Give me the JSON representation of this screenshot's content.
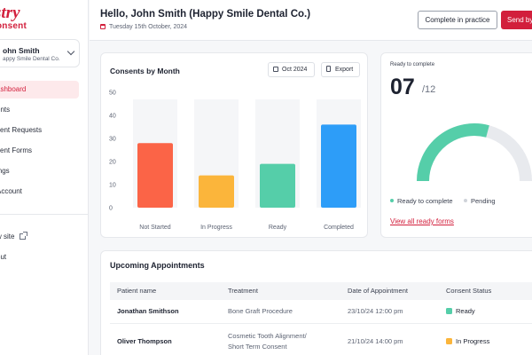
{
  "sidebar": {
    "logo_top": "stry",
    "logo_bottom": "onsent",
    "user_name": "ohn Smith",
    "user_org": "appy Smile Dental Co.",
    "items": [
      {
        "label": "ashboard",
        "active": true
      },
      {
        "label": "ents"
      },
      {
        "label": "sent Requests"
      },
      {
        "label": "sent Forms"
      },
      {
        "label": "ings"
      },
      {
        "label": "Account"
      }
    ],
    "bottom_items": [
      {
        "label": "w site"
      },
      {
        "label": "out"
      }
    ]
  },
  "header": {
    "greeting": "Hello, John Smith (Happy Smile Dental Co.)",
    "date": "Tuesday 15th October, 2024",
    "btn_complete": "Complete in practice",
    "btn_send": "Send by"
  },
  "chart_card": {
    "title": "Consents by Month",
    "month_chip": "Oct 2024",
    "export_chip": "Export"
  },
  "chart_data": {
    "type": "bar",
    "categories": [
      "Not Started",
      "In Progress",
      "Ready",
      "Completed"
    ],
    "values": [
      28,
      14,
      19,
      36
    ],
    "colors": [
      "#fb6447",
      "#fbb53b",
      "#55cea9",
      "#2d9df8"
    ],
    "yticks": [
      0,
      10,
      20,
      30,
      40,
      50
    ],
    "ylim": [
      0,
      50
    ],
    "grid": false
  },
  "ready_card": {
    "label": "Ready to complete",
    "count": "07",
    "total": "/12",
    "ready_value": 7,
    "total_value": 12,
    "ready_color": "#55cea9",
    "pending_color": "#e8eaee",
    "legend_ready": "Ready to complete",
    "legend_pending": "Pending",
    "link": "View all ready forms"
  },
  "appointments": {
    "title": "Upcoming Appointments",
    "headers": [
      "Patient name",
      "Treatment",
      "Date of Appointment",
      "Consent Status"
    ],
    "rows": [
      {
        "patient": "Jonathan Smithson",
        "treatment": "Bone Graft Procedure",
        "treatment2": "",
        "date": "23/10/24 12:00 pm",
        "status": "Ready",
        "status_color": "#55cea9"
      },
      {
        "patient": "Oliver Thompson",
        "treatment": "Cosmetic Tooth Alignment/",
        "treatment2": "Short Term Consent",
        "date": "21/10/24 14:00 pm",
        "status": "In Progress",
        "status_color": "#fbb53b"
      }
    ]
  }
}
